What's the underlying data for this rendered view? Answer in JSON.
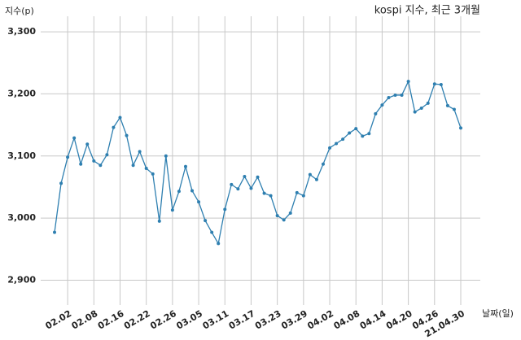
{
  "chart_data": {
    "type": "line",
    "title": "kospi 지수, 최근 3개월",
    "y_label": "지수(p)",
    "x_label": "날짜(일)",
    "categories": [
      null,
      null,
      "02.02",
      null,
      null,
      null,
      "02.08",
      null,
      null,
      null,
      "02.16",
      null,
      null,
      null,
      "02.22",
      null,
      null,
      null,
      "02.26",
      null,
      null,
      null,
      "03.05",
      null,
      null,
      null,
      "03.11",
      null,
      null,
      null,
      "03.17",
      null,
      null,
      null,
      "03.23",
      null,
      null,
      null,
      "03.29",
      null,
      null,
      null,
      "04.02",
      null,
      null,
      null,
      "04.08",
      null,
      null,
      null,
      "04.14",
      null,
      null,
      null,
      "04.20",
      null,
      null,
      null,
      "04.26",
      null,
      null,
      null,
      "21.04.30"
    ],
    "series": [
      {
        "name": "kospi",
        "color": "#2e7fb0",
        "values": [
          2977,
          3056,
          3098,
          3129,
          3087,
          3119,
          3092,
          3085,
          3102,
          3146,
          3162,
          3133,
          3085,
          3107,
          3080,
          3071,
          2995,
          3100,
          3013,
          3043,
          3083,
          3044,
          3026,
          2996,
          2977,
          2959,
          3014,
          3054,
          3047,
          3067,
          3048,
          3066,
          3040,
          3036,
          3004,
          2997,
          3008,
          3041,
          3036,
          3070,
          3062,
          3087,
          3113,
          3120,
          3127,
          3137,
          3144,
          3132,
          3136,
          3168,
          3182,
          3194,
          3198,
          3198,
          3220,
          3171,
          3177,
          3185,
          3216,
          3215,
          3181,
          3175,
          3145
        ]
      }
    ],
    "ylim": [
      2860,
      3325
    ],
    "yticks": [
      {
        "value": 2900,
        "label": "2,900"
      },
      {
        "value": 3000,
        "label": "3,000"
      },
      {
        "value": 3100,
        "label": "3,100"
      },
      {
        "value": 3200,
        "label": "3,200"
      },
      {
        "value": 3300,
        "label": "3,300"
      }
    ],
    "grid": true
  }
}
